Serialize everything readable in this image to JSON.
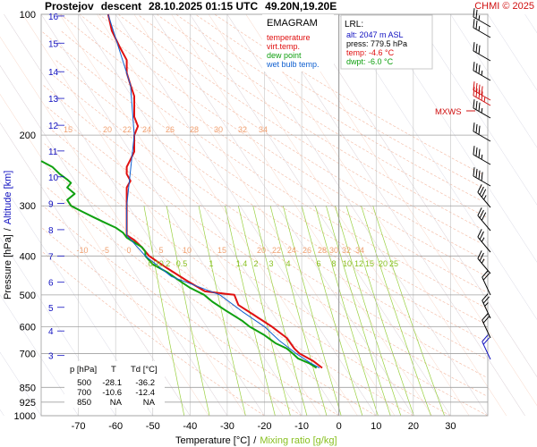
{
  "header": {
    "station": "Prostejov",
    "mode": "descent",
    "datetime": "28.10.2025 01:15 UTC",
    "location": "49.20N,19.20E",
    "copyright": "CHMI © 2025"
  },
  "legend": {
    "title": "EMAGRAM",
    "items": [
      {
        "label": "temperature",
        "color": "#e01010"
      },
      {
        "label": "virt.temp.",
        "color": "#e01010"
      },
      {
        "label": "dew point",
        "color": "#10a010"
      },
      {
        "label": "wet bulb temp.",
        "color": "#1060d0"
      }
    ]
  },
  "lrl": {
    "title": "LRL:",
    "alt": "alt: 2047 m ASL",
    "press": "press: 779.5 hPa",
    "temp": "temp: -4.6 °C",
    "dwpt": "dwpt: -6.0 °C"
  },
  "mxws_label": "MXWS",
  "axes": {
    "ylabel_pressure": "Pressure [hPa]",
    "ylabel_sep": "/",
    "ylabel_altitude": "Altitude [km]",
    "xlabel_temp": "Temperature [°C]",
    "xlabel_sep": "/",
    "xlabel_mix": "Mixing ratio [g/kg]"
  },
  "table": {
    "headers": [
      "p [hPa]",
      "T",
      "Td [°C]"
    ],
    "rows": [
      [
        "500",
        "-28.1",
        "-36.2"
      ],
      [
        "700",
        "-10.6",
        "-12.4"
      ],
      [
        "850",
        "NA",
        "NA"
      ]
    ]
  },
  "chart_data": {
    "type": "line",
    "title": "Prostejov descent 28.10.2025 01:15 UTC 49.20N,19.20E",
    "xlabel": "Temperature [°C] / Mixing ratio [g/kg]",
    "ylabel": "Pressure [hPa] / Altitude [km]",
    "y_scale": "log",
    "xlim": [
      -80,
      40
    ],
    "ylim": [
      1000,
      100
    ],
    "pressure_ticks": [
      100,
      200,
      300,
      400,
      500,
      600,
      700,
      850,
      925,
      1000
    ],
    "temperature_ticks": [
      -70,
      -60,
      -50,
      -40,
      -30,
      -20,
      -10,
      0,
      10,
      20,
      30
    ],
    "altitude_ticks_km": [
      {
        "km": "16",
        "p": 101
      },
      {
        "km": "15",
        "p": 118
      },
      {
        "km": "14",
        "p": 139
      },
      {
        "km": "13",
        "p": 162
      },
      {
        "km": "12",
        "p": 189
      },
      {
        "km": "11",
        "p": 219
      },
      {
        "km": "10",
        "p": 254
      },
      {
        "km": "9",
        "p": 296
      },
      {
        "km": "8",
        "p": 344
      },
      {
        "km": "7",
        "p": 400
      },
      {
        "km": "6",
        "p": 465
      },
      {
        "km": "5",
        "p": 537
      },
      {
        "km": "4",
        "p": 615
      },
      {
        "km": "3",
        "p": 708
      }
    ],
    "mixing_ratio_labels": [
      "0.1",
      "0.2",
      "0.5",
      "1",
      "1.4",
      "2",
      "3",
      "4",
      "6",
      "8",
      "10",
      "12",
      "15",
      "20",
      "25"
    ],
    "theta_labels_upper": [
      "15",
      "20",
      "22",
      "24",
      "26",
      "28",
      "30",
      "32",
      "34"
    ],
    "theta_labels_lower": [
      "-10",
      "-5",
      "0",
      "5",
      "10",
      "15",
      "20",
      "22",
      "24",
      "26",
      "28",
      "30",
      "32",
      "34"
    ],
    "series": [
      {
        "name": "temperature",
        "color": "#e01010",
        "points": [
          [
            100,
            -62
          ],
          [
            110,
            -61
          ],
          [
            120,
            -59
          ],
          [
            130,
            -57
          ],
          [
            140,
            -57
          ],
          [
            150,
            -56
          ],
          [
            160,
            -55
          ],
          [
            170,
            -55
          ],
          [
            180,
            -55
          ],
          [
            190,
            -54
          ],
          [
            200,
            -55
          ],
          [
            210,
            -55
          ],
          [
            220,
            -55
          ],
          [
            230,
            -56
          ],
          [
            240,
            -57
          ],
          [
            250,
            -57
          ],
          [
            260,
            -56
          ],
          [
            270,
            -57
          ],
          [
            280,
            -57
          ],
          [
            300,
            -57
          ],
          [
            320,
            -57
          ],
          [
            340,
            -57
          ],
          [
            355,
            -57
          ],
          [
            365,
            -55
          ],
          [
            380,
            -53
          ],
          [
            400,
            -51
          ],
          [
            430,
            -46
          ],
          [
            460,
            -41
          ],
          [
            490,
            -36
          ],
          [
            500,
            -28.1
          ],
          [
            530,
            -27
          ],
          [
            560,
            -23
          ],
          [
            600,
            -18
          ],
          [
            640,
            -14
          ],
          [
            680,
            -12
          ],
          [
            700,
            -10.6
          ],
          [
            730,
            -7
          ],
          [
            760,
            -4.5
          ]
        ]
      },
      {
        "name": "dew point",
        "color": "#10a010",
        "points": [
          [
            232,
            -80
          ],
          [
            240,
            -77
          ],
          [
            250,
            -75
          ],
          [
            258,
            -73
          ],
          [
            263,
            -72
          ],
          [
            270,
            -73
          ],
          [
            280,
            -71
          ],
          [
            290,
            -73
          ],
          [
            300,
            -72
          ],
          [
            310,
            -69
          ],
          [
            320,
            -66
          ],
          [
            330,
            -63
          ],
          [
            340,
            -60
          ],
          [
            350,
            -58
          ],
          [
            360,
            -57
          ],
          [
            370,
            -55
          ],
          [
            380,
            -53
          ],
          [
            390,
            -52
          ],
          [
            400,
            -52
          ],
          [
            420,
            -50
          ],
          [
            440,
            -46
          ],
          [
            460,
            -43
          ],
          [
            480,
            -40
          ],
          [
            500,
            -36.2
          ],
          [
            520,
            -34
          ],
          [
            550,
            -30
          ],
          [
            580,
            -26
          ],
          [
            600,
            -24
          ],
          [
            630,
            -20
          ],
          [
            660,
            -17
          ],
          [
            680,
            -14
          ],
          [
            700,
            -12.4
          ],
          [
            720,
            -11
          ],
          [
            740,
            -8
          ],
          [
            760,
            -6
          ]
        ]
      },
      {
        "name": "wet bulb temp.",
        "color": "#1060d0",
        "points": [
          [
            100,
            -62
          ],
          [
            150,
            -56
          ],
          [
            200,
            -55
          ],
          [
            300,
            -57
          ],
          [
            355,
            -57
          ],
          [
            400,
            -52
          ],
          [
            450,
            -45
          ],
          [
            500,
            -32
          ],
          [
            550,
            -26
          ],
          [
            600,
            -20
          ],
          [
            650,
            -16
          ],
          [
            700,
            -11.5
          ],
          [
            740,
            -7.5
          ],
          [
            760,
            -5.2
          ]
        ]
      }
    ],
    "wind_barbs": "present",
    "lrl": {
      "alt_m_asl": 2047,
      "press_hpa": 779.5,
      "temp_c": -4.6,
      "dwpt_c": -6.0
    }
  }
}
